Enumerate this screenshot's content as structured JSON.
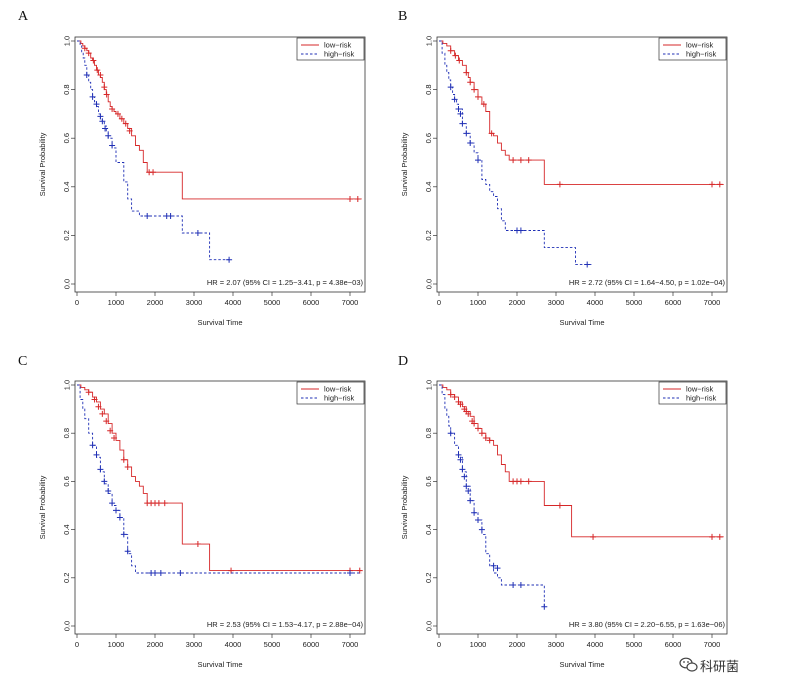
{
  "watermark": {
    "text": "科研菌",
    "icon": "wechat-icon"
  },
  "colors": {
    "low_risk": "#d62728",
    "high_risk": "#1f2fb5",
    "axis": "#333333"
  },
  "chart_data": [
    {
      "panel": "A",
      "type": "line",
      "xlabel": "Survival Time",
      "ylabel": "Survival Probability",
      "xlim": [
        0,
        7000
      ],
      "ylim": [
        0,
        1
      ],
      "x_ticks": [
        0,
        1000,
        2000,
        3000,
        4000,
        5000,
        6000,
        7000
      ],
      "y_ticks": [
        0.0,
        0.2,
        0.4,
        0.6,
        0.8,
        1.0
      ],
      "grid": false,
      "legend": "top-right",
      "annotation": "HR = 2.07 (95% CI = 1.25−3.41, p = 4.38e−03)",
      "series": [
        {
          "name": "low−risk",
          "style": "solid",
          "x": [
            0,
            100,
            150,
            200,
            250,
            300,
            350,
            400,
            450,
            500,
            550,
            600,
            650,
            700,
            750,
            800,
            850,
            900,
            950,
            1000,
            1100,
            1200,
            1300,
            1400,
            1500,
            1600,
            1700,
            1800,
            2600,
            2700,
            7300
          ],
          "y": [
            1.0,
            0.99,
            0.98,
            0.97,
            0.96,
            0.95,
            0.93,
            0.92,
            0.9,
            0.88,
            0.86,
            0.85,
            0.83,
            0.8,
            0.78,
            0.75,
            0.73,
            0.72,
            0.71,
            0.7,
            0.68,
            0.66,
            0.64,
            0.61,
            0.57,
            0.55,
            0.5,
            0.46,
            0.46,
            0.35,
            0.35
          ],
          "censored": [
            [
              200,
              0.97
            ],
            [
              300,
              0.95
            ],
            [
              420,
              0.92
            ],
            [
              520,
              0.88
            ],
            [
              600,
              0.86
            ],
            [
              700,
              0.81
            ],
            [
              760,
              0.78
            ],
            [
              900,
              0.72
            ],
            [
              1050,
              0.7
            ],
            [
              1150,
              0.68
            ],
            [
              1250,
              0.66
            ],
            [
              1350,
              0.63
            ],
            [
              1850,
              0.46
            ],
            [
              1950,
              0.46
            ],
            [
              7000,
              0.35
            ],
            [
              7200,
              0.35
            ]
          ]
        },
        {
          "name": "high−risk",
          "style": "dashed",
          "x": [
            0,
            80,
            120,
            160,
            200,
            250,
            300,
            350,
            400,
            450,
            500,
            550,
            600,
            650,
            700,
            750,
            800,
            900,
            1000,
            1200,
            1300,
            1400,
            1600,
            2600,
            2700,
            3300,
            3400,
            3900
          ],
          "y": [
            1.0,
            0.98,
            0.95,
            0.93,
            0.9,
            0.86,
            0.83,
            0.8,
            0.77,
            0.75,
            0.73,
            0.7,
            0.68,
            0.67,
            0.65,
            0.63,
            0.6,
            0.56,
            0.5,
            0.42,
            0.35,
            0.3,
            0.28,
            0.28,
            0.21,
            0.21,
            0.1,
            0.1
          ],
          "censored": [
            [
              250,
              0.86
            ],
            [
              400,
              0.77
            ],
            [
              500,
              0.74
            ],
            [
              600,
              0.69
            ],
            [
              650,
              0.67
            ],
            [
              720,
              0.64
            ],
            [
              800,
              0.61
            ],
            [
              900,
              0.57
            ],
            [
              1800,
              0.28
            ],
            [
              2300,
              0.28
            ],
            [
              2400,
              0.28
            ],
            [
              3100,
              0.21
            ],
            [
              3900,
              0.1
            ]
          ]
        }
      ]
    },
    {
      "panel": "B",
      "type": "line",
      "xlabel": "Survival Time",
      "ylabel": "Survival Probability",
      "xlim": [
        0,
        7000
      ],
      "ylim": [
        0,
        1
      ],
      "x_ticks": [
        0,
        1000,
        2000,
        3000,
        4000,
        5000,
        6000,
        7000
      ],
      "y_ticks": [
        0.0,
        0.2,
        0.4,
        0.6,
        0.8,
        1.0
      ],
      "grid": false,
      "legend": "top-right",
      "annotation": "HR = 2.72 (95% CI = 1.64−4.50, p = 1.02e−04)",
      "series": [
        {
          "name": "low−risk",
          "style": "solid",
          "x": [
            0,
            100,
            200,
            300,
            400,
            500,
            600,
            700,
            750,
            800,
            900,
            1000,
            1100,
            1200,
            1300,
            1400,
            1500,
            1600,
            1700,
            1800,
            2600,
            2700,
            7300
          ],
          "y": [
            1.0,
            0.99,
            0.98,
            0.96,
            0.94,
            0.92,
            0.9,
            0.87,
            0.85,
            0.83,
            0.8,
            0.77,
            0.74,
            0.71,
            0.62,
            0.61,
            0.58,
            0.55,
            0.53,
            0.51,
            0.51,
            0.41,
            0.41
          ],
          "censored": [
            [
              300,
              0.96
            ],
            [
              420,
              0.94
            ],
            [
              520,
              0.92
            ],
            [
              700,
              0.87
            ],
            [
              800,
              0.83
            ],
            [
              900,
              0.8
            ],
            [
              1000,
              0.77
            ],
            [
              1150,
              0.74
            ],
            [
              1350,
              0.62
            ],
            [
              1900,
              0.51
            ],
            [
              2100,
              0.51
            ],
            [
              2300,
              0.51
            ],
            [
              3100,
              0.41
            ],
            [
              7000,
              0.41
            ],
            [
              7200,
              0.41
            ]
          ]
        },
        {
          "name": "high−risk",
          "style": "dashed",
          "x": [
            0,
            80,
            150,
            200,
            250,
            300,
            350,
            400,
            450,
            500,
            600,
            700,
            800,
            900,
            1000,
            1100,
            1200,
            1300,
            1400,
            1500,
            1600,
            1700,
            1800,
            2600,
            2700,
            3400,
            3500,
            3950
          ],
          "y": [
            1.0,
            0.95,
            0.9,
            0.87,
            0.84,
            0.81,
            0.78,
            0.76,
            0.74,
            0.72,
            0.66,
            0.62,
            0.58,
            0.54,
            0.51,
            0.43,
            0.41,
            0.38,
            0.36,
            0.31,
            0.26,
            0.22,
            0.22,
            0.22,
            0.15,
            0.15,
            0.08,
            0.08
          ],
          "censored": [
            [
              300,
              0.81
            ],
            [
              400,
              0.76
            ],
            [
              500,
              0.72
            ],
            [
              550,
              0.7
            ],
            [
              600,
              0.66
            ],
            [
              700,
              0.62
            ],
            [
              800,
              0.58
            ],
            [
              1000,
              0.51
            ],
            [
              2000,
              0.22
            ],
            [
              2100,
              0.22
            ],
            [
              3800,
              0.08
            ]
          ]
        }
      ]
    },
    {
      "panel": "C",
      "type": "line",
      "xlabel": "Survival Time",
      "ylabel": "Survival Probability",
      "xlim": [
        0,
        7000
      ],
      "ylim": [
        0,
        1
      ],
      "x_ticks": [
        0,
        1000,
        2000,
        3000,
        4000,
        5000,
        6000,
        7000
      ],
      "y_ticks": [
        0.0,
        0.2,
        0.4,
        0.6,
        0.8,
        1.0
      ],
      "grid": false,
      "legend": "top-right",
      "annotation": "HR = 2.53 (95% CI = 1.53−4.17, p = 2.88e−04)",
      "series": [
        {
          "name": "low−risk",
          "style": "solid",
          "x": [
            0,
            100,
            200,
            300,
            400,
            500,
            600,
            700,
            800,
            900,
            1000,
            1100,
            1200,
            1300,
            1400,
            1500,
            1600,
            1700,
            1800,
            2600,
            2700,
            3300,
            3400,
            7300
          ],
          "y": [
            1.0,
            0.99,
            0.98,
            0.97,
            0.95,
            0.93,
            0.9,
            0.88,
            0.84,
            0.8,
            0.77,
            0.73,
            0.69,
            0.66,
            0.62,
            0.6,
            0.58,
            0.55,
            0.51,
            0.51,
            0.34,
            0.34,
            0.23,
            0.23
          ],
          "censored": [
            [
              300,
              0.97
            ],
            [
              450,
              0.94
            ],
            [
              550,
              0.91
            ],
            [
              650,
              0.88
            ],
            [
              750,
              0.85
            ],
            [
              850,
              0.81
            ],
            [
              950,
              0.78
            ],
            [
              1200,
              0.69
            ],
            [
              1300,
              0.66
            ],
            [
              1800,
              0.51
            ],
            [
              1900,
              0.51
            ],
            [
              2000,
              0.51
            ],
            [
              2100,
              0.51
            ],
            [
              2250,
              0.51
            ],
            [
              3100,
              0.34
            ],
            [
              3950,
              0.23
            ],
            [
              7000,
              0.23
            ],
            [
              7250,
              0.23
            ]
          ]
        },
        {
          "name": "high−risk",
          "style": "dashed",
          "x": [
            0,
            80,
            150,
            200,
            300,
            400,
            500,
            600,
            700,
            800,
            900,
            1000,
            1100,
            1200,
            1300,
            1400,
            1500,
            7300
          ],
          "y": [
            1.0,
            0.94,
            0.9,
            0.86,
            0.8,
            0.75,
            0.7,
            0.64,
            0.59,
            0.55,
            0.5,
            0.48,
            0.45,
            0.38,
            0.3,
            0.25,
            0.22,
            0.22
          ],
          "censored": [
            [
              400,
              0.75
            ],
            [
              500,
              0.71
            ],
            [
              600,
              0.65
            ],
            [
              700,
              0.6
            ],
            [
              800,
              0.56
            ],
            [
              900,
              0.51
            ],
            [
              1000,
              0.48
            ],
            [
              1100,
              0.45
            ],
            [
              1200,
              0.38
            ],
            [
              1300,
              0.31
            ],
            [
              1900,
              0.22
            ],
            [
              2000,
              0.22
            ],
            [
              2150,
              0.22
            ],
            [
              2650,
              0.22
            ],
            [
              7000,
              0.22
            ]
          ]
        }
      ]
    },
    {
      "panel": "D",
      "type": "line",
      "xlabel": "Survival Time",
      "ylabel": "Survival Probability",
      "xlim": [
        0,
        7000
      ],
      "ylim": [
        0,
        1
      ],
      "x_ticks": [
        0,
        1000,
        2000,
        3000,
        4000,
        5000,
        6000,
        7000
      ],
      "y_ticks": [
        0.0,
        0.2,
        0.4,
        0.6,
        0.8,
        1.0
      ],
      "grid": false,
      "legend": "top-right",
      "annotation": "HR = 3.80 (95% CI = 2.20−6.55, p = 1.63e−06)",
      "series": [
        {
          "name": "low−risk",
          "style": "solid",
          "x": [
            0,
            100,
            200,
            300,
            400,
            500,
            600,
            700,
            800,
            900,
            1000,
            1100,
            1200,
            1300,
            1400,
            1500,
            1600,
            1700,
            1800,
            2600,
            2700,
            3300,
            3400,
            7300
          ],
          "y": [
            1.0,
            0.99,
            0.98,
            0.96,
            0.95,
            0.93,
            0.91,
            0.89,
            0.87,
            0.84,
            0.82,
            0.8,
            0.78,
            0.77,
            0.75,
            0.71,
            0.67,
            0.64,
            0.6,
            0.6,
            0.5,
            0.5,
            0.37,
            0.37
          ],
          "censored": [
            [
              300,
              0.96
            ],
            [
              400,
              0.95
            ],
            [
              500,
              0.93
            ],
            [
              550,
              0.92
            ],
            [
              650,
              0.9
            ],
            [
              700,
              0.89
            ],
            [
              750,
              0.88
            ],
            [
              850,
              0.85
            ],
            [
              900,
              0.84
            ],
            [
              1000,
              0.82
            ],
            [
              1100,
              0.8
            ],
            [
              1200,
              0.78
            ],
            [
              1300,
              0.77
            ],
            [
              1900,
              0.6
            ],
            [
              2000,
              0.6
            ],
            [
              2100,
              0.6
            ],
            [
              2300,
              0.6
            ],
            [
              3100,
              0.5
            ],
            [
              3950,
              0.37
            ],
            [
              7000,
              0.37
            ],
            [
              7200,
              0.37
            ]
          ]
        },
        {
          "name": "high−risk",
          "style": "dashed",
          "x": [
            0,
            80,
            150,
            200,
            250,
            300,
            400,
            500,
            600,
            700,
            800,
            900,
            1000,
            1100,
            1200,
            1300,
            1400,
            1500,
            1600,
            2600,
            2700
          ],
          "y": [
            1.0,
            0.96,
            0.9,
            0.87,
            0.83,
            0.8,
            0.75,
            0.7,
            0.64,
            0.58,
            0.52,
            0.47,
            0.44,
            0.38,
            0.3,
            0.25,
            0.22,
            0.2,
            0.17,
            0.17,
            0.08
          ],
          "censored": [
            [
              300,
              0.8
            ],
            [
              500,
              0.71
            ],
            [
              550,
              0.69
            ],
            [
              600,
              0.65
            ],
            [
              650,
              0.62
            ],
            [
              700,
              0.58
            ],
            [
              750,
              0.56
            ],
            [
              800,
              0.52
            ],
            [
              900,
              0.47
            ],
            [
              1000,
              0.44
            ],
            [
              1100,
              0.4
            ],
            [
              1400,
              0.25
            ],
            [
              1500,
              0.24
            ],
            [
              1900,
              0.17
            ],
            [
              2100,
              0.17
            ],
            [
              2700,
              0.08
            ]
          ]
        }
      ]
    }
  ]
}
